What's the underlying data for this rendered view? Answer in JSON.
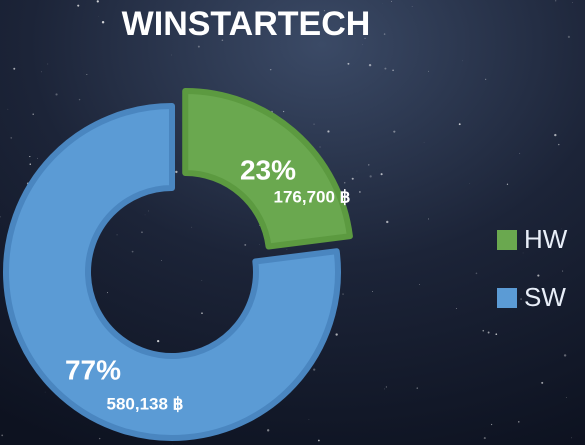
{
  "chart_data": {
    "type": "donut",
    "title": "WINSTARTECH",
    "categories": [
      "HW",
      "SW"
    ],
    "values": [
      23,
      77
    ],
    "value_labels": [
      "23%",
      "77%"
    ],
    "amounts": [
      "176,700 ฿",
      "580,138 ฿"
    ],
    "colors": [
      "#6aa84f",
      "#5b9bd5"
    ],
    "exploded": [
      true,
      false
    ],
    "legend": "right"
  }
}
